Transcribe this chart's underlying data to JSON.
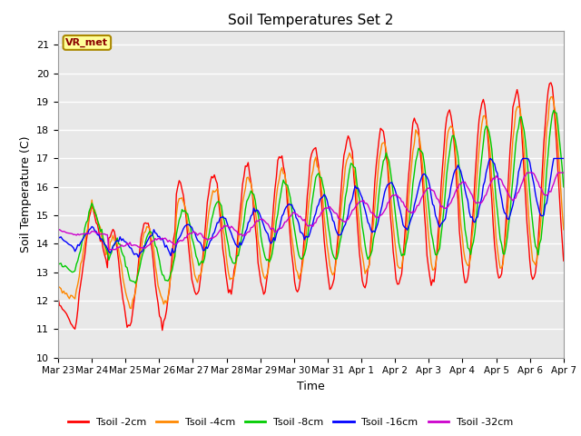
{
  "title": "Soil Temperatures Set 2",
  "xlabel": "Time",
  "ylabel": "Soil Temperature (C)",
  "ylim": [
    10.0,
    21.5
  ],
  "yticks": [
    10.0,
    11.0,
    12.0,
    13.0,
    14.0,
    15.0,
    16.0,
    17.0,
    18.0,
    19.0,
    20.0,
    21.0
  ],
  "plot_bg_color": "#e8e8e8",
  "legend_label": "VR_met",
  "series_colors": [
    "#ff0000",
    "#ff8800",
    "#00cc00",
    "#0000ff",
    "#cc00cc"
  ],
  "series_labels": [
    "Tsoil -2cm",
    "Tsoil -4cm",
    "Tsoil -8cm",
    "Tsoil -16cm",
    "Tsoil -32cm"
  ],
  "x_tick_labels": [
    "Mar 23",
    "Mar 24",
    "Mar 25",
    "Mar 26",
    "Mar 27",
    "Mar 28",
    "Mar 29",
    "Mar 30",
    "Mar 31",
    "Apr 1",
    "Apr 2",
    "Apr 3",
    "Apr 4",
    "Apr 5",
    "Apr 6",
    "Apr 7"
  ],
  "n_days": 15,
  "n_points": 360
}
